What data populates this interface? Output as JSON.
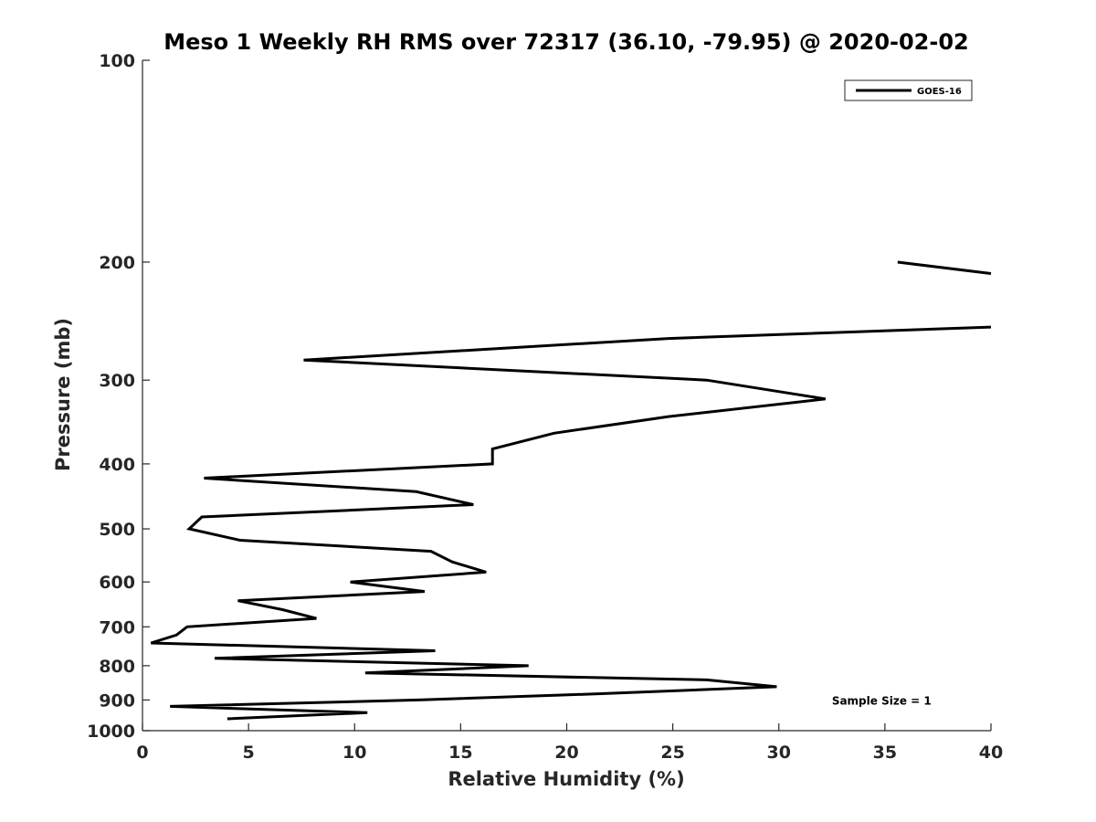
{
  "chart_data": {
    "type": "line",
    "title": "Meso 1 Weekly RH RMS over 72317 (36.10, -79.95) @ 2020-02-02",
    "xlabel": "Relative Humidity (%)",
    "ylabel": "Pressure (mb)",
    "xlim": [
      0,
      40
    ],
    "ylim": [
      100,
      1000
    ],
    "y_scale": "log",
    "y_reversed": true,
    "x_ticks": [
      0,
      5,
      10,
      15,
      20,
      25,
      30,
      35,
      40
    ],
    "y_ticks": [
      100,
      200,
      300,
      400,
      500,
      600,
      700,
      800,
      900,
      1000
    ],
    "grid": false,
    "legend_position": "top-right",
    "series": [
      {
        "name": "GOES-16",
        "color": "#000000",
        "segments": [
          [
            {
              "x": 35.6,
              "y": 200
            },
            {
              "x": 40.0,
              "y": 208
            }
          ],
          [
            {
              "x": 40.0,
              "y": 250
            },
            {
              "x": 24.8,
              "y": 260
            },
            {
              "x": 7.6,
              "y": 280
            },
            {
              "x": 26.6,
              "y": 300
            },
            {
              "x": 32.2,
              "y": 320
            },
            {
              "x": 24.8,
              "y": 340
            },
            {
              "x": 19.4,
              "y": 360
            },
            {
              "x": 16.5,
              "y": 380
            },
            {
              "x": 16.5,
              "y": 400
            },
            {
              "x": 2.9,
              "y": 420
            },
            {
              "x": 12.9,
              "y": 440
            },
            {
              "x": 15.6,
              "y": 460
            },
            {
              "x": 2.8,
              "y": 480
            },
            {
              "x": 2.2,
              "y": 500
            },
            {
              "x": 4.6,
              "y": 520
            },
            {
              "x": 13.6,
              "y": 540
            },
            {
              "x": 14.6,
              "y": 560
            },
            {
              "x": 16.2,
              "y": 580
            },
            {
              "x": 9.8,
              "y": 600
            },
            {
              "x": 13.3,
              "y": 620
            },
            {
              "x": 4.5,
              "y": 640
            },
            {
              "x": 6.6,
              "y": 660
            },
            {
              "x": 8.2,
              "y": 680
            },
            {
              "x": 2.1,
              "y": 700
            },
            {
              "x": 1.6,
              "y": 720
            },
            {
              "x": 0.4,
              "y": 740
            },
            {
              "x": 13.8,
              "y": 760
            },
            {
              "x": 3.4,
              "y": 780
            },
            {
              "x": 18.2,
              "y": 800
            },
            {
              "x": 10.5,
              "y": 820
            },
            {
              "x": 26.6,
              "y": 840
            },
            {
              "x": 29.9,
              "y": 860
            },
            {
              "x": 21.9,
              "y": 880
            },
            {
              "x": 13.0,
              "y": 900
            },
            {
              "x": 1.3,
              "y": 920
            },
            {
              "x": 10.6,
              "y": 940
            },
            {
              "x": 4.0,
              "y": 960
            }
          ]
        ]
      }
    ],
    "annotations": [
      {
        "text": "Sample Size = 1",
        "x": 32.5,
        "y": 900
      }
    ]
  }
}
